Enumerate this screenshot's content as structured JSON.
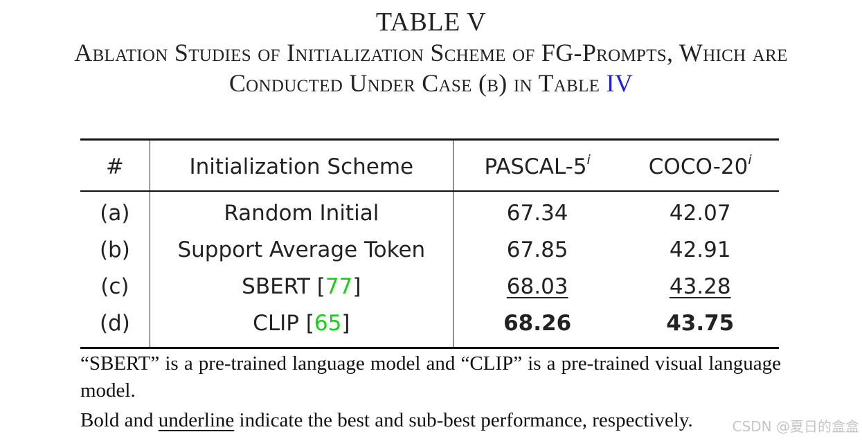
{
  "title": {
    "label": "TABLE V",
    "caption_line1": "Ablation Studies of Initialization Scheme of FG-Prompts, Which are",
    "caption_line2_text": "Conducted Under Case (b) in Table",
    "caption_line2_ref": "IV"
  },
  "table": {
    "headers": {
      "num": "#",
      "scheme": "Initialization Scheme",
      "pascal": "PASCAL-5",
      "pascal_sup": "i",
      "coco": "COCO-20",
      "coco_sup": "i"
    },
    "rows": [
      {
        "id": "(a)",
        "scheme": "Random Initial",
        "ref": "",
        "pascal": "67.34",
        "coco": "42.07"
      },
      {
        "id": "(b)",
        "scheme": "Support Average Token",
        "ref": "",
        "pascal": "67.85",
        "coco": "42.91"
      },
      {
        "id": "(c)",
        "scheme": "SBERT",
        "ref": "77",
        "pascal": "68.03",
        "coco": "43.28"
      },
      {
        "id": "(d)",
        "scheme": "CLIP",
        "ref": "65",
        "pascal": "68.26",
        "coco": "43.75"
      }
    ]
  },
  "notes": {
    "note1": "“SBERT” is a pre-trained language model and “CLIP” is a pre-trained visual language model.",
    "note2_pre": "Bold and",
    "note2_underline": "underline",
    "note2_post": "indicate the best and sub-best performance, respectively."
  },
  "watermark": "CSDN @夏日的盒盒",
  "colors": {
    "ref_link_blue": "#1f1fd6",
    "ref_link_green": "#19d019",
    "text": "#222222"
  }
}
